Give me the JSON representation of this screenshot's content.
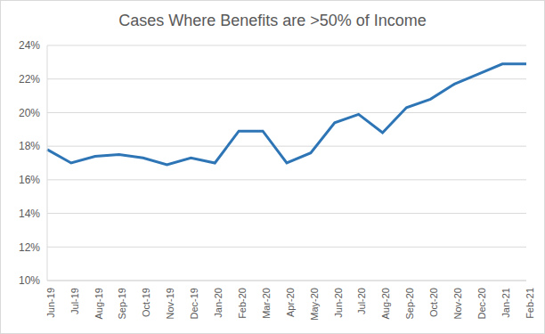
{
  "chart_data": {
    "type": "line",
    "title": "Cases Where Benefits are >50% of Income",
    "categories": [
      "Jun-19",
      "Jul-19",
      "Aug-19",
      "Sep-19",
      "Oct-19",
      "Nov-19",
      "Dec-19",
      "Jan-20",
      "Feb-20",
      "Mar-20",
      "Apr-20",
      "May-20",
      "Jun-20",
      "Jul-20",
      "Aug-20",
      "Sep-20",
      "Oct-20",
      "Nov-20",
      "Dec-20",
      "Jan-21",
      "Feb-21"
    ],
    "values": [
      17.8,
      17.0,
      17.4,
      17.5,
      17.3,
      16.9,
      17.3,
      17.0,
      18.9,
      18.9,
      17.0,
      17.6,
      19.4,
      19.9,
      18.8,
      20.3,
      20.8,
      21.7,
      22.3,
      22.9,
      22.9
    ],
    "color": "#2e75b6",
    "ylim": [
      10,
      24
    ],
    "yticks": [
      {
        "value": 10,
        "label": "10%"
      },
      {
        "value": 12,
        "label": "12%"
      },
      {
        "value": 14,
        "label": "14%"
      },
      {
        "value": 16,
        "label": "16%"
      },
      {
        "value": 18,
        "label": "18%"
      },
      {
        "value": 20,
        "label": "20%"
      },
      {
        "value": 22,
        "label": "22%"
      },
      {
        "value": 24,
        "label": "24%"
      }
    ],
    "grid": true
  }
}
